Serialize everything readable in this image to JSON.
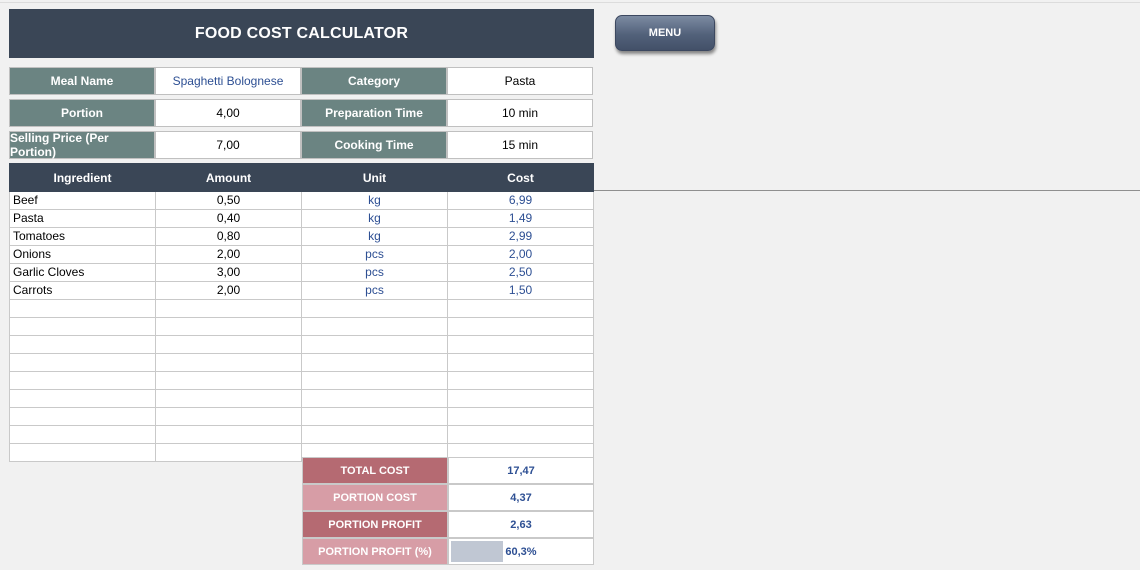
{
  "title": "FOOD COST CALCULATOR",
  "menu_label": "MENU",
  "info": {
    "meal_name_label": "Meal Name",
    "meal_name_value": "Spaghetti Bolognese",
    "category_label": "Category",
    "category_value": "Pasta",
    "portion_label": "Portion",
    "portion_value": "4,00",
    "prep_label": "Preparation Time",
    "prep_value": "10 min",
    "price_label": "Selling Price (Per Portion)",
    "price_value": "7,00",
    "cooking_label": "Cooking Time",
    "cooking_value": "15 min"
  },
  "table": {
    "headers": [
      "Ingredient",
      "Amount",
      "Unit",
      "Cost"
    ],
    "rows": [
      [
        "Beef",
        "0,50",
        "kg",
        "6,99"
      ],
      [
        "Pasta",
        "0,40",
        "kg",
        "1,49"
      ],
      [
        "Tomatoes",
        "0,80",
        "kg",
        "2,99"
      ],
      [
        "Onions",
        "2,00",
        "pcs",
        "2,00"
      ],
      [
        "Garlic Cloves",
        "3,00",
        "pcs",
        "2,50"
      ],
      [
        "Carrots",
        "2,00",
        "pcs",
        "1,50"
      ],
      [
        "",
        "",
        "",
        ""
      ],
      [
        "",
        "",
        "",
        ""
      ],
      [
        "",
        "",
        "",
        ""
      ],
      [
        "",
        "",
        "",
        ""
      ],
      [
        "",
        "",
        "",
        ""
      ],
      [
        "",
        "",
        "",
        ""
      ],
      [
        "",
        "",
        "",
        ""
      ],
      [
        "",
        "",
        "",
        ""
      ],
      [
        "",
        "",
        "",
        ""
      ]
    ]
  },
  "summary": {
    "total_cost_label": "TOTAL COST",
    "total_cost_value": "17,47",
    "portion_cost_label": "PORTION COST",
    "portion_cost_value": "4,37",
    "portion_profit_label": "PORTION PROFIT",
    "portion_profit_value": "2,63",
    "portion_profit_pct_label": "PORTION PROFIT (%)",
    "portion_profit_pct_value": "60,3%",
    "portion_profit_pct_fraction": 0.603
  },
  "colors": {
    "header_dark": "#3a4656",
    "label_teal": "#6b8482",
    "summary_dark": "#b56a72",
    "summary_light": "#d79da6",
    "value_blue": "#2d4f93"
  }
}
